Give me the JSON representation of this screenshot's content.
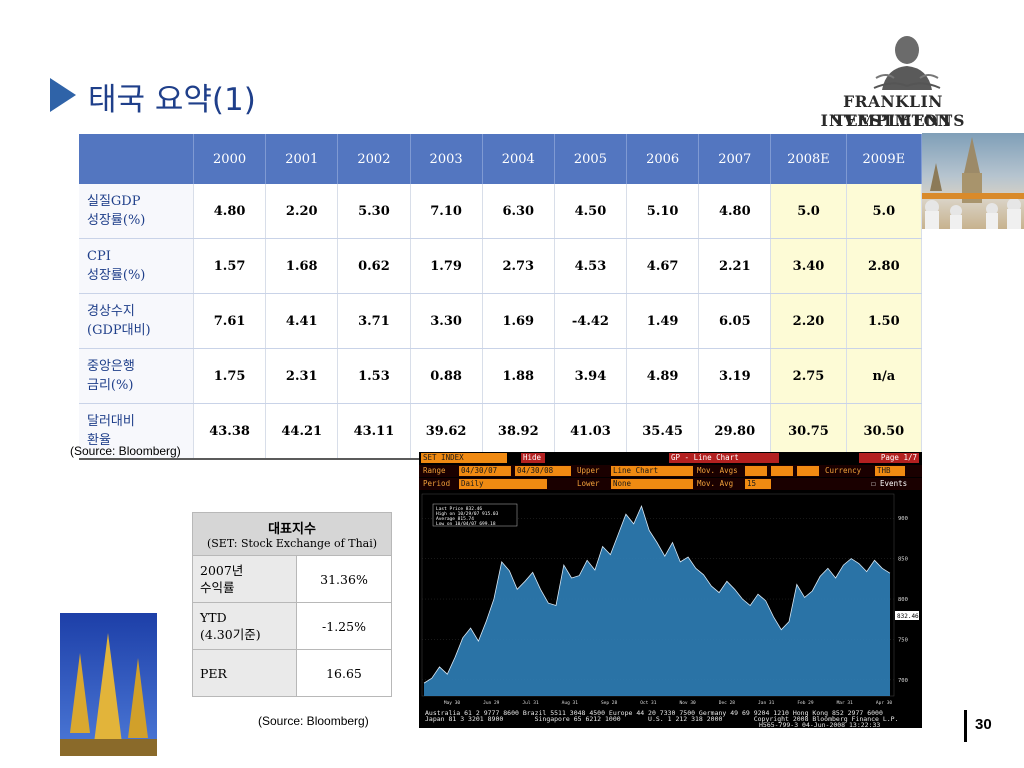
{
  "title": "태국 요약(1)",
  "logo": {
    "line1": "FRANKLIN TEMPLETON",
    "line2": "INVESTMENTS"
  },
  "main_table": {
    "columns": [
      "2000",
      "2001",
      "2002",
      "2003",
      "2004",
      "2005",
      "2006",
      "2007",
      "2008E",
      "2009E"
    ],
    "rows": [
      {
        "label1": "실질GDP",
        "label2": "성장률(%)",
        "values": [
          "4.80",
          "2.20",
          "5.30",
          "7.10",
          "6.30",
          "4.50",
          "5.10",
          "4.80",
          "5.0",
          "5.0"
        ]
      },
      {
        "label1": "CPI",
        "label2": "성장률(%)",
        "values": [
          "1.57",
          "1.68",
          "0.62",
          "1.79",
          "2.73",
          "4.53",
          "4.67",
          "2.21",
          "3.40",
          "2.80"
        ]
      },
      {
        "label1": "경상수지",
        "label2": "(GDP대비)",
        "values": [
          "7.61",
          "4.41",
          "3.71",
          "3.30",
          "1.69",
          "-4.42",
          "1.49",
          "6.05",
          "2.20",
          "1.50"
        ]
      },
      {
        "label1": "중앙은행",
        "label2": "금리(%)",
        "values": [
          "1.75",
          "2.31",
          "1.53",
          "0.88",
          "1.88",
          "3.94",
          "4.89",
          "3.19",
          "2.75",
          "n/a"
        ]
      },
      {
        "label1": "달러대비",
        "label2": "환율",
        "values": [
          "43.38",
          "44.21",
          "43.11",
          "39.62",
          "38.92",
          "41.03",
          "35.45",
          "29.80",
          "30.75",
          "30.50"
        ]
      }
    ]
  },
  "source_top": "(Source: Bloomberg)",
  "source_bottom": "(Source: Bloomberg)",
  "index_table": {
    "header": "대표지수",
    "subheader": "(SET: Stock Exchange of Thai)",
    "rows": [
      {
        "label1": "2007년",
        "label2": "수익률",
        "value": "31.36%"
      },
      {
        "label1": "YTD",
        "label2": "(4.30기준)",
        "value": "-1.25%"
      },
      {
        "label1": "PER",
        "label2": "",
        "value": "16.65"
      }
    ]
  },
  "bloomberg": {
    "ticker": "SET INDEX",
    "hide": "Hide",
    "chart_title": "GP - Line Chart",
    "page": "Page 1/7",
    "range_label": "Range",
    "range_from": "04/30/07",
    "range_to": "04/30/08",
    "upper_label": "Upper",
    "upper_value": "Line Chart",
    "mov_avgs_label": "Mov. Avgs",
    "currency_label": "Currency",
    "currency_value": "THB",
    "period_label": "Period",
    "period_value": "Daily",
    "lower_label": "Lower",
    "lower_value": "None",
    "mov_avg_label": "Mov. Avg",
    "mov_avg_value": "15",
    "events_label": "Events",
    "legend": [
      "Last Price   832.46",
      "High on 10/29/07  915.03",
      "Average   815.74",
      "Low on 10/04/07  699.18"
    ],
    "last_value_label": "832.46",
    "y_ticks": [
      "900",
      "850",
      "800",
      "750",
      "700"
    ],
    "x_ticks": [
      "May 30",
      "Jun 29",
      "Jul 31",
      "Aug 31",
      "Sep 28",
      "Oct 31",
      "Nov 30",
      "Dec 28",
      "Jan 31",
      "Feb 29",
      "Mar 31",
      "Apr 30"
    ],
    "footer1": "Australia 61 2 9777 8600 Brazil 5511 3048 4500 Europe 44 20 7330 7500 Germany 49 69 9204 1210 Hong Kong 852 2977 6000",
    "footer2": "Japan 81 3 3201 8900        Singapore 65 6212 1000       U.S. 1 212 318 2000        Copyright 2008 Bloomberg Finance L.P.",
    "footer3": "H565-799-3 04-Jun-2008 13:22:33",
    "series_color": "#2f7fb8"
  },
  "chart_data": {
    "type": "area",
    "title": "",
    "xlabel": "",
    "ylabel": "",
    "ylim": [
      680,
      930
    ],
    "x_ticks": [
      "May 30",
      "Jun 29",
      "Jul 31",
      "Aug 31",
      "Sep 28",
      "Oct 31",
      "Nov 30",
      "Dec 28",
      "Jan 31",
      "Feb 29",
      "Mar 31",
      "Apr 30"
    ],
    "values": [
      696,
      702,
      716,
      707,
      728,
      752,
      764,
      748,
      772,
      800,
      846,
      835,
      812,
      822,
      833,
      812,
      795,
      792,
      842,
      826,
      829,
      848,
      836,
      865,
      855,
      880,
      905,
      893,
      915,
      885,
      870,
      853,
      870,
      846,
      852,
      838,
      830,
      816,
      808,
      822,
      812,
      800,
      792,
      806,
      798,
      778,
      762,
      772,
      818,
      802,
      810,
      828,
      838,
      826,
      842,
      850,
      844,
      834,
      848,
      838,
      832
    ]
  },
  "page_number": "30"
}
